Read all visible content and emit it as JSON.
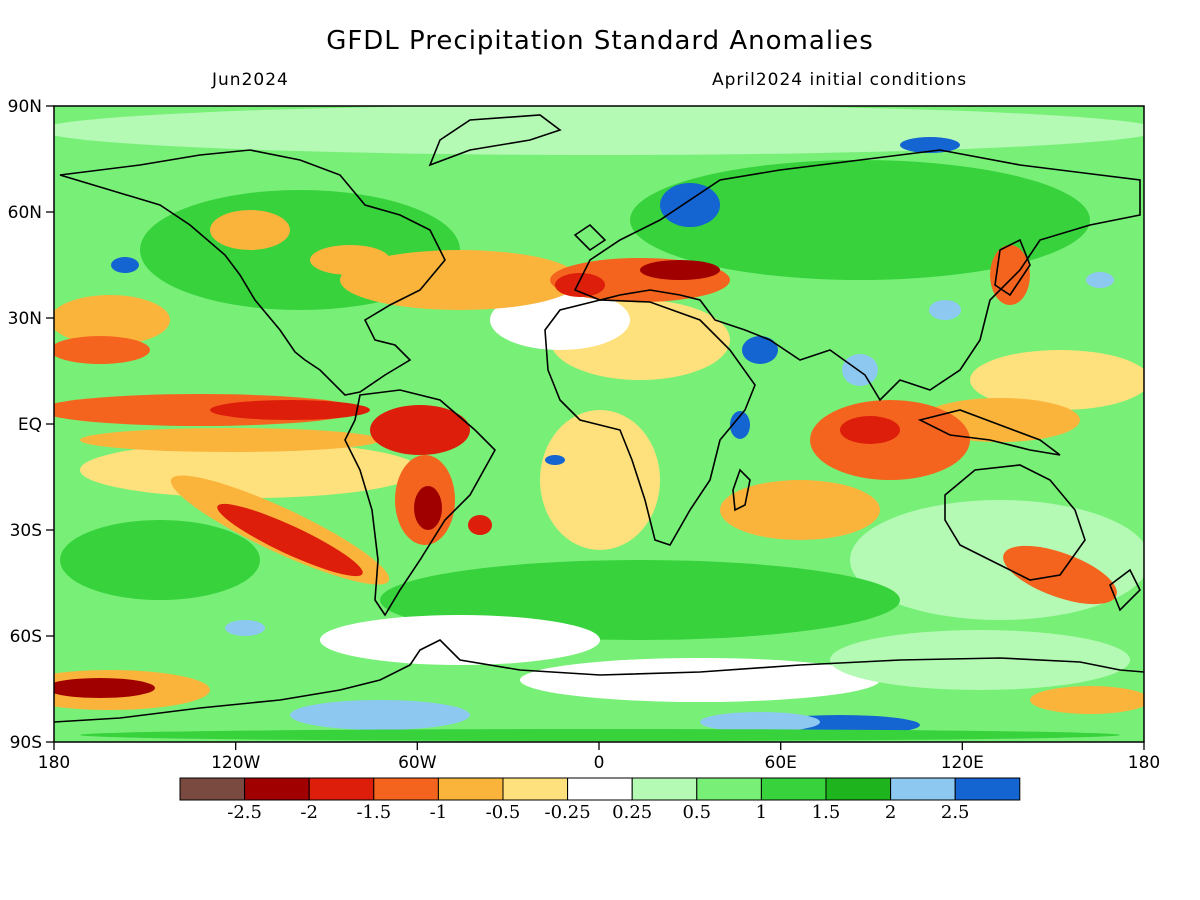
{
  "header": {
    "title": "GFDL Precipitation Standard Anomalies",
    "left_subtitle": "Jun2024",
    "right_subtitle": "April2024 initial conditions"
  },
  "map": {
    "lat_labels": [
      "90N",
      "60N",
      "30N",
      "EQ",
      "30S",
      "60S",
      "90S"
    ],
    "lon_labels": [
      "180",
      "120W",
      "60W",
      "0",
      "60E",
      "120E",
      "180"
    ]
  },
  "colorbar": {
    "colors": [
      "#7a4a40",
      "#a00000",
      "#dc1e0a",
      "#f5641e",
      "#fab43c",
      "#fee17c",
      "#ffffff",
      "#b4fab4",
      "#78f078",
      "#37d23c",
      "#1eb41e",
      "#8cc8f0",
      "#1464d2"
    ],
    "labels": [
      "-2.5",
      "-2",
      "-1.5",
      "-1",
      "-0.5",
      "-0.25",
      "0.25",
      "0.5",
      "1",
      "1.5",
      "2",
      "2.5"
    ]
  }
}
